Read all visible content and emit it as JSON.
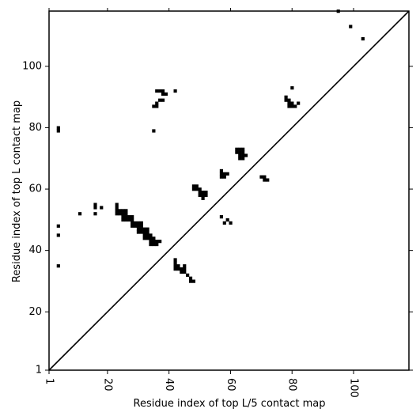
{
  "chart_data": {
    "type": "scatter",
    "title": "",
    "xlabel": "Residue index of top L/5 contact map",
    "ylabel": "Residue index of top L contact map",
    "xlim": [
      1,
      118
    ],
    "ylim": [
      1,
      118
    ],
    "x_ticks": [
      1,
      20,
      40,
      60,
      80,
      100
    ],
    "y_ticks": [
      1,
      20,
      40,
      60,
      80,
      100
    ],
    "x_ticklabels": [
      "1",
      "20",
      "40",
      "60",
      "80",
      "100"
    ],
    "y_ticklabels": [
      "1",
      "20",
      "40",
      "60",
      "80",
      "100"
    ],
    "x_ticklabel_rotation": 270,
    "grid": false,
    "diagonal": true,
    "marker": "square",
    "color": "#000000",
    "points": [
      [
        4,
        80
      ],
      [
        4,
        79
      ],
      [
        4,
        48
      ],
      [
        4,
        45
      ],
      [
        4,
        35
      ],
      [
        11,
        52
      ],
      [
        16,
        55
      ],
      [
        16,
        54
      ],
      [
        16,
        52
      ],
      [
        18,
        54
      ],
      [
        23,
        55
      ],
      [
        23,
        54
      ],
      [
        23,
        53
      ],
      [
        24,
        53
      ],
      [
        25,
        53
      ],
      [
        26,
        53
      ],
      [
        23,
        52
      ],
      [
        24,
        52
      ],
      [
        25,
        52
      ],
      [
        26,
        52
      ],
      [
        25,
        51
      ],
      [
        26,
        51
      ],
      [
        27,
        51
      ],
      [
        28,
        51
      ],
      [
        25,
        50
      ],
      [
        26,
        50
      ],
      [
        27,
        50
      ],
      [
        28,
        50
      ],
      [
        28,
        49
      ],
      [
        29,
        49
      ],
      [
        30,
        49
      ],
      [
        31,
        49
      ],
      [
        28,
        48
      ],
      [
        29,
        48
      ],
      [
        30,
        48
      ],
      [
        31,
        48
      ],
      [
        30,
        47
      ],
      [
        31,
        47
      ],
      [
        32,
        47
      ],
      [
        33,
        47
      ],
      [
        30,
        46
      ],
      [
        31,
        46
      ],
      [
        32,
        46
      ],
      [
        33,
        46
      ],
      [
        32,
        45
      ],
      [
        33,
        45
      ],
      [
        34,
        45
      ],
      [
        32,
        44
      ],
      [
        33,
        44
      ],
      [
        34,
        44
      ],
      [
        35,
        44
      ],
      [
        34,
        43
      ],
      [
        35,
        43
      ],
      [
        36,
        43
      ],
      [
        37,
        43
      ],
      [
        34,
        42
      ],
      [
        35,
        42
      ],
      [
        36,
        42
      ],
      [
        42,
        37
      ],
      [
        42,
        36
      ],
      [
        42,
        35
      ],
      [
        43,
        35
      ],
      [
        45,
        35
      ],
      [
        42,
        34
      ],
      [
        43,
        34
      ],
      [
        44,
        34
      ],
      [
        45,
        34
      ],
      [
        44,
        33
      ],
      [
        45,
        33
      ],
      [
        46,
        32
      ],
      [
        47,
        31
      ],
      [
        47,
        30
      ],
      [
        48,
        30
      ],
      [
        35,
        79
      ],
      [
        35,
        87
      ],
      [
        36,
        87
      ],
      [
        36,
        88
      ],
      [
        37,
        89
      ],
      [
        38,
        89
      ],
      [
        36,
        92
      ],
      [
        37,
        92
      ],
      [
        38,
        92
      ],
      [
        38,
        91
      ],
      [
        39,
        91
      ],
      [
        42,
        92
      ],
      [
        48,
        61
      ],
      [
        49,
        61
      ],
      [
        50,
        60
      ],
      [
        48,
        60
      ],
      [
        49,
        60
      ],
      [
        50,
        59
      ],
      [
        51,
        59
      ],
      [
        52,
        59
      ],
      [
        50,
        58
      ],
      [
        51,
        58
      ],
      [
        52,
        58
      ],
      [
        51,
        57
      ],
      [
        57,
        66
      ],
      [
        57,
        65
      ],
      [
        58,
        65
      ],
      [
        59,
        65
      ],
      [
        57,
        64
      ],
      [
        58,
        64
      ],
      [
        62,
        73
      ],
      [
        63,
        73
      ],
      [
        64,
        73
      ],
      [
        62,
        72
      ],
      [
        63,
        72
      ],
      [
        64,
        72
      ],
      [
        63,
        71
      ],
      [
        64,
        71
      ],
      [
        65,
        71
      ],
      [
        63,
        70
      ],
      [
        64,
        70
      ],
      [
        57,
        51
      ],
      [
        58,
        49
      ],
      [
        59,
        50
      ],
      [
        60,
        49
      ],
      [
        70,
        64
      ],
      [
        71,
        64
      ],
      [
        71,
        63
      ],
      [
        72,
        63
      ],
      [
        78,
        90
      ],
      [
        78,
        89
      ],
      [
        79,
        89
      ],
      [
        79,
        88
      ],
      [
        80,
        88
      ],
      [
        82,
        88
      ],
      [
        79,
        87
      ],
      [
        80,
        87
      ],
      [
        81,
        87
      ],
      [
        80,
        93
      ],
      [
        95,
        118
      ],
      [
        99,
        113
      ],
      [
        103,
        109
      ]
    ]
  }
}
